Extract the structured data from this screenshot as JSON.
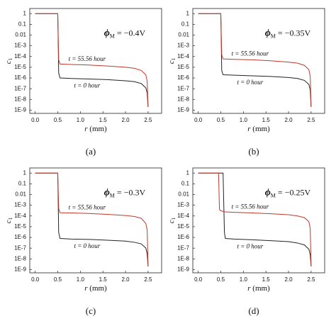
{
  "chart_data": [
    {
      "type": "line",
      "caption": "(a)",
      "log_y": true,
      "annotation": {
        "symbol": "ϕ",
        "subscript": "M",
        "text": " = −0.4V"
      },
      "xlabel": {
        "symbol": "r",
        "text": " (mm)"
      },
      "ylabel": {
        "symbol": "c",
        "subscript": "1"
      },
      "xlim": [
        -0.12,
        2.8
      ],
      "ylim": [
        5e-10,
        3
      ],
      "xticks": [
        {
          "value": 0,
          "label": "0.0"
        },
        0.5,
        {
          "value": 1,
          "label": "1.0"
        },
        1.5,
        {
          "value": 2,
          "label": "2.0"
        },
        2.5
      ],
      "yticks": [
        1,
        0.1,
        0.01,
        {
          "value": 0.001,
          "label": "1E-3"
        },
        {
          "value": 0.0001,
          "label": "1E-4"
        },
        {
          "value": 1e-05,
          "label": "1E-5"
        },
        {
          "value": 1e-06,
          "label": "1E-6"
        },
        {
          "value": 1e-07,
          "label": "1E-7"
        },
        {
          "value": 1e-08,
          "label": "1E-8"
        },
        {
          "value": 1e-09,
          "label": "1E-9"
        }
      ],
      "x": [
        0,
        0.1,
        0.2,
        0.3,
        0.4,
        0.5,
        0.52,
        0.55,
        0.8,
        1.2,
        1.6,
        2.0,
        2.2,
        2.35,
        2.45,
        2.48,
        2.5
      ],
      "series": [
        {
          "name": "t = 0 hour",
          "color": "#222222",
          "values": [
            1,
            1,
            1,
            1,
            1,
            1,
            3e-06,
            1e-06,
            9e-07,
            8e-07,
            7e-07,
            5.5e-07,
            4.5e-07,
            3e-07,
            1.2e-07,
            4e-08,
            2e-09
          ]
        },
        {
          "name": "t = 55.56 hour",
          "color": "#c0392b",
          "values": [
            1,
            1,
            1,
            1,
            1,
            1,
            5e-05,
            2e-05,
            1.8e-05,
            1.6e-05,
            1.3e-05,
            1e-05,
            8e-06,
            5e-06,
            2e-06,
            5e-07,
            2e-09
          ]
        }
      ]
    },
    {
      "type": "line",
      "caption": "(b)",
      "log_y": true,
      "annotation": {
        "symbol": "ϕ",
        "subscript": "M",
        "text": " = −0.35V"
      },
      "xlabel": {
        "symbol": "r",
        "text": " (mm)"
      },
      "ylabel": {
        "symbol": "c",
        "subscript": "1"
      },
      "xlim": [
        -0.12,
        2.8
      ],
      "ylim": [
        5e-10,
        3
      ],
      "xticks": [
        {
          "value": 0,
          "label": "0.0"
        },
        0.5,
        {
          "value": 1,
          "label": "1.0"
        },
        1.5,
        {
          "value": 2,
          "label": "2.0"
        },
        2.5
      ],
      "yticks": [
        1,
        0.1,
        0.01,
        {
          "value": 0.001,
          "label": "1E-3"
        },
        {
          "value": 0.0001,
          "label": "1E-4"
        },
        {
          "value": 1e-05,
          "label": "1E-5"
        },
        {
          "value": 1e-06,
          "label": "1E-6"
        },
        {
          "value": 1e-07,
          "label": "1E-7"
        },
        {
          "value": 1e-08,
          "label": "1E-8"
        },
        {
          "value": 1e-09,
          "label": "1E-9"
        }
      ],
      "x": [
        0,
        0.1,
        0.2,
        0.3,
        0.4,
        0.5,
        0.52,
        0.55,
        0.8,
        1.2,
        1.6,
        2.0,
        2.2,
        2.35,
        2.45,
        2.48,
        2.5
      ],
      "series": [
        {
          "name": "t = 0 hour",
          "color": "#222222",
          "values": [
            1,
            1,
            1,
            1,
            1,
            1,
            5e-06,
            2e-06,
            1.8e-06,
            1.6e-06,
            1.4e-06,
            1.1e-06,
            9e-07,
            6e-07,
            2.5e-07,
            8e-08,
            2e-09
          ]
        },
        {
          "name": "t = 55.56 hour",
          "color": "#c0392b",
          "values": [
            1,
            1,
            1,
            1,
            1,
            1,
            0.00015,
            6e-05,
            5.5e-05,
            5e-05,
            4e-05,
            3e-05,
            2.4e-05,
            1.5e-05,
            6e-06,
            1.5e-06,
            2e-09
          ]
        }
      ]
    },
    {
      "type": "line",
      "caption": "(c)",
      "log_y": true,
      "annotation": {
        "symbol": "ϕ",
        "subscript": "M",
        "text": " = −0.3V"
      },
      "xlabel": {
        "symbol": "r",
        "text": " (mm)"
      },
      "ylabel": {
        "symbol": "c",
        "subscript": "1"
      },
      "xlim": [
        -0.12,
        2.8
      ],
      "ylim": [
        5e-10,
        3
      ],
      "xticks": [
        {
          "value": 0,
          "label": "0.0"
        },
        0.5,
        {
          "value": 1,
          "label": "1.0"
        },
        1.5,
        {
          "value": 2,
          "label": "2.0"
        },
        2.5
      ],
      "yticks": [
        1,
        0.1,
        0.01,
        {
          "value": 0.001,
          "label": "1E-3"
        },
        {
          "value": 0.0001,
          "label": "1E-4"
        },
        {
          "value": 1e-05,
          "label": "1E-5"
        },
        {
          "value": 1e-06,
          "label": "1E-6"
        },
        {
          "value": 1e-07,
          "label": "1E-7"
        },
        {
          "value": 1e-08,
          "label": "1E-8"
        },
        {
          "value": 1e-09,
          "label": "1E-9"
        }
      ],
      "x": [
        0,
        0.1,
        0.2,
        0.3,
        0.4,
        0.5,
        0.52,
        0.55,
        0.8,
        1.2,
        1.6,
        2.0,
        2.2,
        2.35,
        2.45,
        2.48,
        2.5
      ],
      "series": [
        {
          "name": "t = 0 hour",
          "color": "#222222",
          "values": [
            1,
            1,
            1,
            1,
            1,
            1,
            3e-06,
            8e-07,
            7e-07,
            6.5e-07,
            5.5e-07,
            4.5e-07,
            3.5e-07,
            2.5e-07,
            1e-07,
            3e-08,
            2e-09
          ]
        },
        {
          "name": "t = 55.56 hour",
          "color": "#c0392b",
          "values": [
            1,
            1,
            1,
            1,
            1,
            1,
            0.0005,
            0.0002,
            0.00019,
            0.00017,
            0.00014,
            0.00011,
            9e-05,
            6e-05,
            2e-05,
            5e-06,
            2e-09
          ]
        }
      ]
    },
    {
      "type": "line",
      "caption": "(d)",
      "log_y": true,
      "annotation": {
        "symbol": "ϕ",
        "subscript": "M",
        "text": " = −0.25V"
      },
      "xlabel": {
        "symbol": "r",
        "text": " (mm)"
      },
      "ylabel": {
        "symbol": "c",
        "subscript": "1"
      },
      "xlim": [
        -0.12,
        2.8
      ],
      "ylim": [
        5e-10,
        3
      ],
      "xticks": [
        {
          "value": 0,
          "label": "0.0"
        },
        0.5,
        {
          "value": 1,
          "label": "1.0"
        },
        1.5,
        {
          "value": 2,
          "label": "2.0"
        },
        2.5
      ],
      "yticks": [
        1,
        0.1,
        0.01,
        {
          "value": 0.001,
          "label": "1E-3"
        },
        {
          "value": 0.0001,
          "label": "1E-4"
        },
        {
          "value": 1e-05,
          "label": "1E-5"
        },
        {
          "value": 1e-06,
          "label": "1E-6"
        },
        {
          "value": 1e-07,
          "label": "1E-7"
        },
        {
          "value": 1e-08,
          "label": "1E-8"
        },
        {
          "value": 1e-09,
          "label": "1E-9"
        }
      ],
      "x": [
        0,
        0.1,
        0.2,
        0.3,
        0.4,
        0.45,
        0.47,
        0.5,
        0.55,
        0.58,
        0.6,
        0.8,
        1.2,
        1.6,
        2.0,
        2.2,
        2.35,
        2.45,
        2.48,
        2.5
      ],
      "series": [
        {
          "name": "t = 0 hour",
          "color": "#222222",
          "values": [
            1,
            1,
            1,
            1,
            1,
            1,
            1,
            1,
            1,
            3e-06,
            8e-07,
            7e-07,
            6e-07,
            5e-07,
            4e-07,
            3e-07,
            2e-07,
            8e-08,
            2.5e-08,
            2e-09
          ]
        },
        {
          "name": "t = 55.56 hour",
          "color": "#c0392b",
          "values": [
            1,
            1,
            1,
            1,
            1,
            1,
            0.0004,
            0.0003,
            0.00027,
            0.00025,
            0.00024,
            0.00022,
            0.00019,
            0.00016,
            0.00013,
            0.0001,
            7e-05,
            3e-05,
            7e-06,
            2e-09
          ]
        }
      ]
    }
  ]
}
